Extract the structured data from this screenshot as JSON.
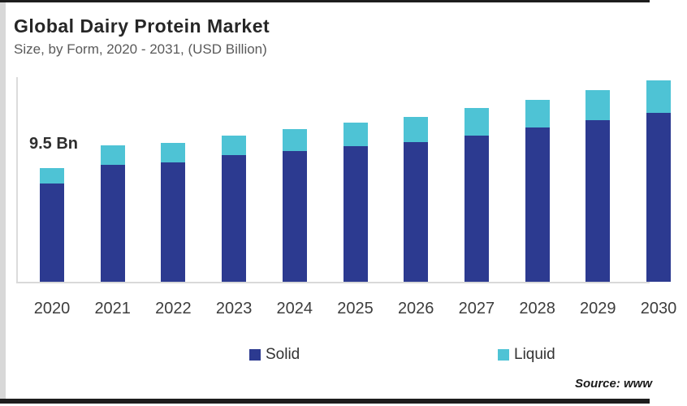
{
  "header": {
    "title": "Global Dairy Protein Market",
    "subtitle": "Size, by Form, 2020 - 2031, (USD Billion)"
  },
  "annotation": {
    "first_bar_label": "9.5 Bn"
  },
  "legend": [
    {
      "label": "Solid",
      "color": "#2c3a90"
    },
    {
      "label": "Liquid",
      "color": "#4ec3d5"
    }
  ],
  "source": {
    "text": "Source: www"
  },
  "chart_data": {
    "type": "bar",
    "stacked": true,
    "title": "Global Dairy Protein Market",
    "subtitle": "Size, by Form, 2020 - 2031, (USD Billion)",
    "units": "USD Billion",
    "categories": [
      "2020",
      "2021",
      "2022",
      "2023",
      "2024",
      "2025",
      "2026",
      "2027",
      "2028",
      "2029",
      "2030"
    ],
    "series": [
      {
        "name": "Solid",
        "color": "#2c3a90",
        "values": [
          8.2,
          9.8,
          10.0,
          10.6,
          10.9,
          11.3,
          11.7,
          12.2,
          12.9,
          13.5,
          14.1
        ]
      },
      {
        "name": "Liquid",
        "color": "#4ec3d5",
        "values": [
          1.3,
          1.6,
          1.6,
          1.6,
          1.8,
          2.0,
          2.1,
          2.3,
          2.3,
          2.5,
          2.7
        ]
      }
    ],
    "totals": [
      9.5,
      11.4,
      11.6,
      12.2,
      12.7,
      13.3,
      13.8,
      14.5,
      15.2,
      16.0,
      16.8
    ],
    "annotations": [
      {
        "category": "2020",
        "text": "9.5 Bn"
      }
    ],
    "ylim": [
      0,
      17
    ],
    "y_axis_labels_visible": false,
    "grid": false,
    "legend_position": "bottom",
    "note_last_bar": "2030 bar and label partially cut off at right edge"
  }
}
